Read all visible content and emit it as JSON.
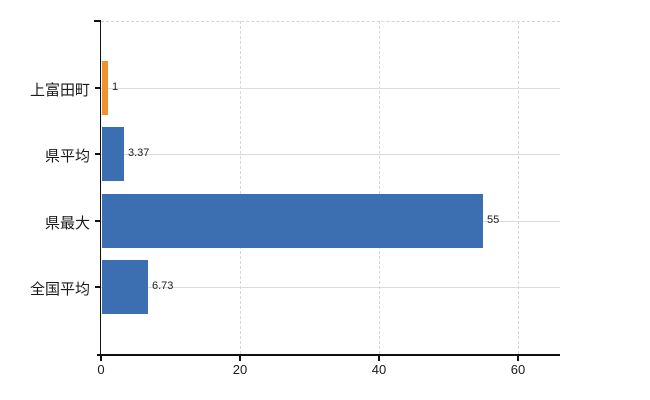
{
  "chart_data": {
    "type": "bar",
    "orientation": "horizontal",
    "title": "",
    "xlabel": "",
    "ylabel": "",
    "categories": [
      "上富田町",
      "県平均",
      "県最大",
      "全国平均"
    ],
    "values": [
      1,
      3.37,
      55,
      6.73
    ],
    "value_labels": [
      "1",
      "3.37",
      "55",
      "6.73"
    ],
    "bar_colors": [
      "#F0922D",
      "#3C6FB1",
      "#3C6FB1",
      "#3C6FB1"
    ],
    "x_ticks": [
      0,
      20,
      40,
      60
    ],
    "x_tick_labels": [
      "0",
      "20",
      "40",
      "60"
    ],
    "xlim": [
      0,
      66
    ],
    "grid": true,
    "legend": "none",
    "background_color": "#FFFFFF",
    "axis_color": "#111111",
    "gridline_color": "#D7D7D7",
    "accent_orange": "#F0922D",
    "accent_blue": "#3C6FB1"
  }
}
